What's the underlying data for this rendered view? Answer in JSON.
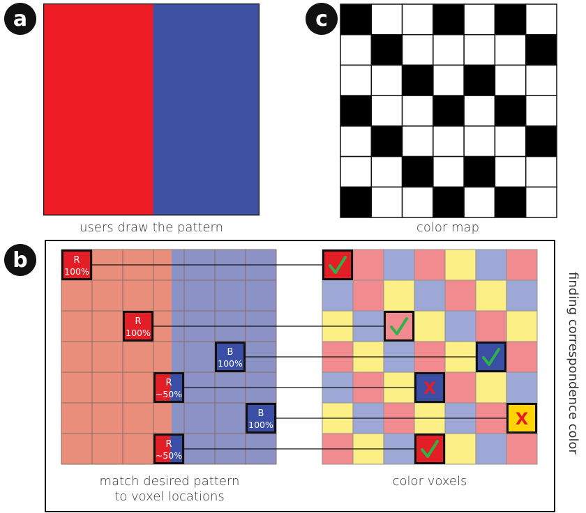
{
  "panels": {
    "a": {
      "badge": "a",
      "caption": "users draw the pattern",
      "colors": {
        "red": "#ee1c24",
        "blue": "#3f51a3"
      }
    },
    "c": {
      "badge": "c",
      "caption": "color map",
      "grid_rows": 7,
      "grid_cols": 7,
      "black_cells": [
        [
          0,
          0
        ],
        [
          0,
          3
        ],
        [
          0,
          5
        ],
        [
          1,
          1
        ],
        [
          1,
          6
        ],
        [
          2,
          2
        ],
        [
          2,
          4
        ],
        [
          3,
          0
        ],
        [
          3,
          3
        ],
        [
          3,
          5
        ],
        [
          4,
          1
        ],
        [
          4,
          6
        ],
        [
          5,
          2
        ],
        [
          5,
          4
        ],
        [
          6,
          0
        ],
        [
          6,
          3
        ],
        [
          6,
          5
        ]
      ]
    },
    "b": {
      "badge": "b",
      "caption_left_line1": "match desired pattern",
      "caption_left_line2": "to voxel locations",
      "caption_right": "color voxels",
      "side_label": "finding correspondence color",
      "colors": {
        "salmon": "#e88e7a",
        "lavender": "#8b93c6",
        "pink": "#f28b8f",
        "yellow": "#fbef86",
        "periwinkle": "#9ea8d6",
        "red": "#e31e26",
        "blue": "#3a4ea5",
        "gold": "#ffd400",
        "check": "#2db34a",
        "cross": "#e31e26"
      },
      "voxel_grid": [
        [
          "red",
          "pink",
          "periwinkle",
          "pink",
          "yellow",
          "periwinkle",
          "pink"
        ],
        [
          "periwinkle",
          "pink",
          "yellow",
          "periwinkle",
          "pink",
          "yellow",
          "periwinkle"
        ],
        [
          "yellow",
          "periwinkle",
          "pink",
          "yellow",
          "periwinkle",
          "pink",
          "yellow"
        ],
        [
          "pink",
          "yellow",
          "periwinkle",
          "pink",
          "yellow",
          "blue",
          "pink"
        ],
        [
          "periwinkle",
          "pink",
          "yellow",
          "blue",
          "pink",
          "yellow",
          "periwinkle"
        ],
        [
          "yellow",
          "periwinkle",
          "pink",
          "yellow",
          "periwinkle",
          "pink",
          "gold"
        ],
        [
          "pink",
          "yellow",
          "periwinkle",
          "red",
          "yellow",
          "periwinkle",
          "pink"
        ]
      ],
      "labels": [
        {
          "line1": "R",
          "line2": "100%",
          "fill": "red",
          "half": false,
          "src": [
            0,
            0
          ],
          "dst": [
            0,
            0
          ],
          "mark": "check"
        },
        {
          "line1": "R",
          "line2": "100%",
          "fill": "red",
          "half": false,
          "src": [
            2,
            2
          ],
          "dst": [
            2,
            2
          ],
          "mark": "check"
        },
        {
          "line1": "B",
          "line2": "100%",
          "fill": "blue",
          "half": false,
          "src": [
            3,
            5
          ],
          "dst": [
            3,
            5
          ],
          "mark": "check"
        },
        {
          "line1": "R",
          "line2": "~50%",
          "fill": "red",
          "half": true,
          "src": [
            4,
            3
          ],
          "dst": [
            4,
            3
          ],
          "mark": "cross"
        },
        {
          "line1": "B",
          "line2": "100%",
          "fill": "blue",
          "half": false,
          "src": [
            5,
            6
          ],
          "dst": [
            5,
            6
          ],
          "mark": "cross"
        },
        {
          "line1": "R",
          "line2": "~50%",
          "fill": "red",
          "half": true,
          "src": [
            6,
            3
          ],
          "dst": [
            6,
            3
          ],
          "mark": "check"
        }
      ],
      "cross_glyph": "X"
    }
  }
}
